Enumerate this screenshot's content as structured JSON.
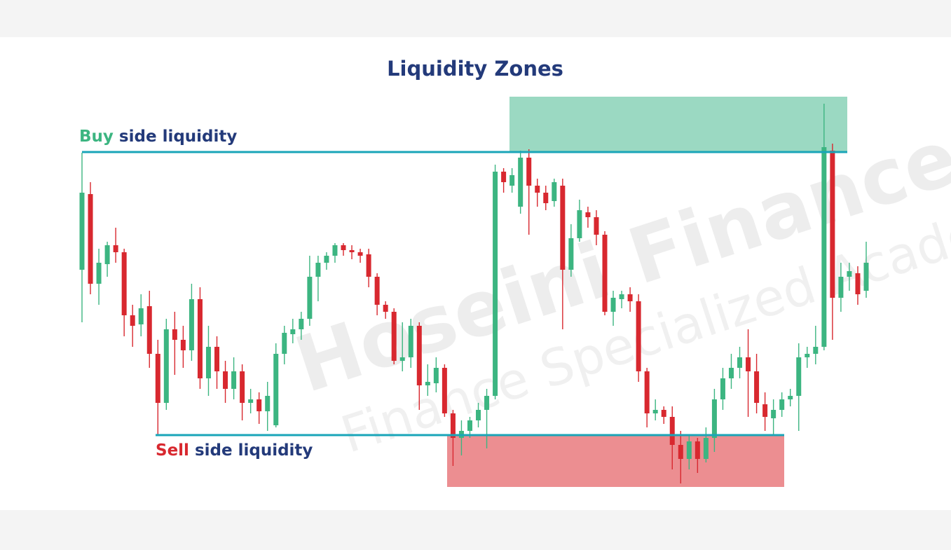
{
  "chart_data": {
    "type": "candlestick",
    "title": "Liquidity Zones",
    "ylim": [
      0,
      557
    ],
    "up_color": "#3cb581",
    "down_color": "#d8282f",
    "open": [
      310,
      418,
      290,
      318,
      345,
      335,
      245,
      232,
      258,
      190,
      120,
      225,
      210,
      195,
      268,
      155,
      200,
      165,
      140,
      165,
      120,
      125,
      108,
      88,
      190,
      218,
      225,
      240,
      300,
      320,
      330,
      345,
      338,
      335,
      332,
      300,
      260,
      250,
      180,
      185,
      230,
      145,
      148,
      170,
      105,
      70,
      80,
      95,
      110,
      130,
      450,
      430,
      400,
      470,
      430,
      420,
      408,
      430,
      310,
      355,
      392,
      385,
      360,
      250,
      268,
      275,
      265,
      165,
      105,
      110,
      100,
      60,
      40,
      65,
      40,
      70,
      125,
      155,
      170,
      185,
      165,
      118,
      98,
      110,
      125,
      130,
      185,
      190,
      200,
      480,
      270,
      300,
      305,
      280
    ],
    "high": [
      477,
      435,
      340,
      350,
      370,
      340,
      260,
      275,
      280,
      210,
      240,
      250,
      230,
      290,
      285,
      230,
      215,
      180,
      185,
      175,
      140,
      135,
      150,
      205,
      230,
      240,
      250,
      330,
      330,
      335,
      348,
      348,
      345,
      340,
      340,
      305,
      265,
      255,
      235,
      240,
      235,
      175,
      185,
      175,
      110,
      95,
      100,
      120,
      140,
      460,
      455,
      455,
      480,
      482,
      440,
      430,
      440,
      440,
      375,
      410,
      400,
      395,
      365,
      280,
      280,
      285,
      275,
      170,
      125,
      115,
      115,
      80,
      75,
      70,
      85,
      140,
      170,
      190,
      200,
      225,
      190,
      135,
      125,
      135,
      140,
      205,
      200,
      230,
      547,
      490,
      320,
      320,
      315,
      350
    ],
    "low": [
      235,
      275,
      260,
      300,
      320,
      215,
      200,
      215,
      170,
      75,
      110,
      160,
      170,
      180,
      140,
      130,
      140,
      120,
      125,
      95,
      105,
      90,
      80,
      85,
      175,
      205,
      210,
      230,
      265,
      310,
      320,
      330,
      325,
      320,
      285,
      245,
      240,
      175,
      165,
      170,
      110,
      130,
      135,
      100,
      30,
      45,
      70,
      85,
      55,
      125,
      420,
      420,
      390,
      360,
      400,
      395,
      400,
      225,
      300,
      350,
      370,
      345,
      245,
      230,
      255,
      250,
      150,
      85,
      95,
      90,
      25,
      5,
      25,
      20,
      35,
      50,
      110,
      140,
      155,
      100,
      105,
      80,
      75,
      100,
      115,
      80,
      170,
      175,
      195,
      210,
      250,
      280,
      260,
      270
    ],
    "close": [
      420,
      290,
      320,
      345,
      335,
      245,
      230,
      255,
      190,
      120,
      225,
      210,
      195,
      268,
      155,
      200,
      165,
      140,
      165,
      120,
      125,
      108,
      130,
      190,
      220,
      225,
      240,
      300,
      320,
      330,
      345,
      338,
      335,
      330,
      300,
      260,
      250,
      180,
      185,
      230,
      145,
      150,
      170,
      105,
      70,
      80,
      95,
      110,
      130,
      450,
      435,
      445,
      470,
      430,
      420,
      405,
      435,
      310,
      355,
      395,
      385,
      360,
      250,
      270,
      275,
      265,
      165,
      105,
      110,
      100,
      60,
      40,
      65,
      40,
      70,
      125,
      155,
      170,
      185,
      165,
      120,
      100,
      110,
      125,
      130,
      185,
      190,
      200,
      485,
      270,
      300,
      308,
      275,
      320
    ],
    "buy_side": {
      "word": "Buy",
      "rest": "side liquidity",
      "level": 478,
      "zone_top": 557,
      "color": "#3cb581"
    },
    "sell_side": {
      "word": "Sell",
      "rest": "side liquidity",
      "level": 74,
      "zone_bottom": 0,
      "color": "#d8282f"
    },
    "line_color": "#1aa5b8",
    "buy_zone_color": "#9bd9c2",
    "sell_zone_color": "#ec8e91",
    "watermark": {
      "brand": "Hoseini Finance",
      "tagline": "Finance Specialized Academy"
    }
  }
}
